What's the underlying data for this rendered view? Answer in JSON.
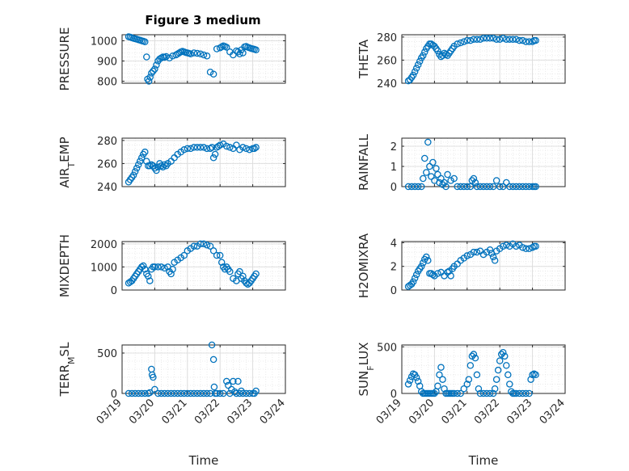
{
  "title": "Figure 3 medium",
  "chart_data": [
    {
      "type": "scatter",
      "ylabel": "PRESSURE",
      "ylabel_sub": "",
      "ylim": [
        790,
        1030
      ],
      "yticks": [
        800,
        900,
        1000
      ],
      "xlim": [
        0,
        5
      ],
      "grid": true,
      "color": "#0072BD",
      "x": [
        0.2,
        0.25,
        0.3,
        0.35,
        0.4,
        0.45,
        0.5,
        0.55,
        0.6,
        0.65,
        0.7,
        0.75,
        0.78,
        0.82,
        0.86,
        0.9,
        0.95,
        1.0,
        1.05,
        1.1,
        1.15,
        1.2,
        1.25,
        1.3,
        1.35,
        1.45,
        1.55,
        1.65,
        1.7,
        1.75,
        1.8,
        1.85,
        1.9,
        1.95,
        2.0,
        2.05,
        2.1,
        2.2,
        2.3,
        2.4,
        2.5,
        2.6,
        2.7,
        2.8,
        2.9,
        3.0,
        3.05,
        3.1,
        3.15,
        3.2,
        3.3,
        3.4,
        3.5,
        3.55,
        3.6,
        3.65,
        3.7,
        3.75,
        3.8,
        3.85,
        3.9,
        3.95,
        4.0,
        4.05,
        4.1
      ],
      "y": [
        1020,
        1018,
        1015,
        1012,
        1010,
        1008,
        1005,
        1003,
        1000,
        998,
        995,
        920,
        810,
        800,
        820,
        840,
        850,
        860,
        880,
        900,
        910,
        915,
        920,
        918,
        922,
        915,
        925,
        930,
        935,
        940,
        945,
        948,
        945,
        942,
        940,
        938,
        935,
        940,
        938,
        935,
        930,
        925,
        845,
        835,
        960,
        965,
        970,
        975,
        972,
        968,
        945,
        930,
        950,
        945,
        935,
        955,
        940,
        970,
        972,
        968,
        965,
        962,
        960,
        958,
        955
      ]
    },
    {
      "type": "scatter",
      "ylabel": "THETA",
      "ylabel_sub": "",
      "ylim": [
        240,
        282
      ],
      "yticks": [
        240,
        260,
        280
      ],
      "xlim": [
        0,
        5
      ],
      "grid": true,
      "color": "#0072BD",
      "x": [
        0.2,
        0.25,
        0.3,
        0.35,
        0.4,
        0.45,
        0.5,
        0.55,
        0.6,
        0.65,
        0.7,
        0.75,
        0.8,
        0.85,
        0.9,
        0.95,
        1.0,
        1.05,
        1.1,
        1.15,
        1.2,
        1.25,
        1.3,
        1.35,
        1.4,
        1.45,
        1.5,
        1.55,
        1.6,
        1.7,
        1.8,
        1.9,
        2.0,
        2.1,
        2.2,
        2.3,
        2.4,
        2.5,
        2.6,
        2.7,
        2.8,
        2.9,
        3.0,
        3.1,
        3.2,
        3.3,
        3.4,
        3.5,
        3.6,
        3.7,
        3.8,
        3.9,
        4.0,
        4.05,
        4.1
      ],
      "y": [
        242,
        243,
        245,
        247,
        250,
        253,
        256,
        259,
        262,
        264,
        267,
        270,
        272,
        274,
        274,
        273,
        272,
        270,
        268,
        265,
        263,
        264,
        266,
        265,
        264,
        266,
        268,
        270,
        272,
        274,
        275,
        276,
        277,
        277,
        278,
        278,
        278,
        279,
        279,
        279,
        279,
        278,
        278,
        279,
        278,
        278,
        278,
        278,
        277,
        277,
        276,
        276,
        276,
        277,
        277
      ]
    },
    {
      "type": "scatter",
      "ylabel": "AIR",
      "ylabel_sub": "T",
      "ylabel_rest": "EMP",
      "ylim": [
        240,
        282
      ],
      "yticks": [
        240,
        260,
        280
      ],
      "xlim": [
        0,
        5
      ],
      "grid": true,
      "color": "#0072BD",
      "x": [
        0.2,
        0.25,
        0.3,
        0.35,
        0.4,
        0.45,
        0.5,
        0.55,
        0.6,
        0.65,
        0.7,
        0.75,
        0.8,
        0.85,
        0.9,
        0.95,
        1.0,
        1.05,
        1.1,
        1.15,
        1.2,
        1.25,
        1.3,
        1.35,
        1.4,
        1.5,
        1.6,
        1.7,
        1.8,
        1.9,
        2.0,
        2.1,
        2.2,
        2.3,
        2.4,
        2.5,
        2.6,
        2.7,
        2.75,
        2.8,
        2.85,
        2.9,
        2.95,
        3.0,
        3.1,
        3.2,
        3.3,
        3.4,
        3.5,
        3.6,
        3.7,
        3.8,
        3.9,
        4.0,
        4.05,
        4.1
      ],
      "y": [
        244,
        246,
        248,
        250,
        253,
        256,
        259,
        262,
        265,
        268,
        270,
        262,
        258,
        258,
        259,
        258,
        256,
        254,
        257,
        260,
        258,
        257,
        259,
        258,
        260,
        262,
        265,
        268,
        270,
        272,
        273,
        273,
        274,
        274,
        274,
        274,
        273,
        273,
        274,
        265,
        268,
        274,
        275,
        276,
        277,
        275,
        274,
        273,
        276,
        272,
        274,
        273,
        272,
        273,
        273,
        274
      ]
    },
    {
      "type": "scatter",
      "ylabel": "RAINFALL",
      "ylabel_sub": "",
      "ylim": [
        0,
        2.4
      ],
      "yticks": [
        0,
        1,
        2
      ],
      "xlim": [
        0,
        5
      ],
      "grid": true,
      "color": "#0072BD",
      "x": [
        0.2,
        0.3,
        0.4,
        0.5,
        0.6,
        0.65,
        0.7,
        0.75,
        0.8,
        0.85,
        0.9,
        0.95,
        1.0,
        1.05,
        1.1,
        1.15,
        1.2,
        1.25,
        1.3,
        1.35,
        1.4,
        1.5,
        1.6,
        1.7,
        1.8,
        1.9,
        2.0,
        2.1,
        2.15,
        2.2,
        2.25,
        2.3,
        2.4,
        2.5,
        2.6,
        2.7,
        2.8,
        2.9,
        3.0,
        3.1,
        3.2,
        3.3,
        3.4,
        3.5,
        3.6,
        3.7,
        3.8,
        3.9,
        4.0,
        4.05,
        4.1
      ],
      "y": [
        0,
        0,
        0,
        0,
        0,
        0.4,
        1.4,
        0.7,
        2.2,
        1.0,
        0.5,
        1.2,
        0.3,
        0.9,
        0.6,
        0.2,
        0.4,
        0.1,
        0.2,
        0,
        0.6,
        0.3,
        0.4,
        0,
        0,
        0,
        0,
        0,
        0.3,
        0.4,
        0.2,
        0,
        0,
        0,
        0,
        0,
        0,
        0.3,
        0,
        0,
        0.2,
        0,
        0,
        0,
        0,
        0,
        0,
        0,
        0,
        0,
        0
      ]
    },
    {
      "type": "scatter",
      "ylabel": "MIXDEPTH",
      "ylabel_sub": "",
      "ylim": [
        0,
        2100
      ],
      "yticks": [
        0,
        1000,
        2000
      ],
      "xlim": [
        0,
        5
      ],
      "grid": true,
      "color": "#0072BD",
      "x": [
        0.2,
        0.25,
        0.3,
        0.35,
        0.4,
        0.45,
        0.5,
        0.55,
        0.6,
        0.65,
        0.7,
        0.75,
        0.8,
        0.85,
        0.9,
        0.95,
        1.0,
        1.1,
        1.2,
        1.3,
        1.4,
        1.45,
        1.5,
        1.55,
        1.6,
        1.7,
        1.8,
        1.9,
        2.0,
        2.1,
        2.2,
        2.3,
        2.4,
        2.5,
        2.6,
        2.7,
        2.8,
        2.9,
        3.0,
        3.05,
        3.1,
        3.15,
        3.2,
        3.25,
        3.3,
        3.4,
        3.5,
        3.55,
        3.6,
        3.65,
        3.7,
        3.75,
        3.8,
        3.85,
        3.9,
        3.95,
        4.0,
        4.05,
        4.1
      ],
      "y": [
        300,
        350,
        400,
        500,
        600,
        700,
        800,
        900,
        1000,
        1050,
        900,
        700,
        600,
        400,
        900,
        1000,
        1000,
        1000,
        1000,
        950,
        1000,
        800,
        700,
        900,
        1200,
        1300,
        1400,
        1500,
        1700,
        1800,
        1900,
        1900,
        2000,
        2000,
        1950,
        1900,
        1700,
        1500,
        1500,
        1200,
        1000,
        900,
        1000,
        900,
        800,
        500,
        400,
        700,
        800,
        500,
        600,
        400,
        300,
        250,
        300,
        400,
        500,
        600,
        700
      ]
    },
    {
      "type": "scatter",
      "ylabel": "H2OMIXRA",
      "ylabel_sub": "",
      "ylim": [
        0,
        4.1
      ],
      "yticks": [
        0,
        2,
        4
      ],
      "xlim": [
        0,
        5
      ],
      "grid": true,
      "color": "#0072BD",
      "x": [
        0.2,
        0.25,
        0.3,
        0.35,
        0.4,
        0.45,
        0.5,
        0.55,
        0.6,
        0.65,
        0.7,
        0.75,
        0.8,
        0.85,
        0.9,
        0.95,
        1.0,
        1.1,
        1.2,
        1.3,
        1.4,
        1.45,
        1.5,
        1.55,
        1.6,
        1.7,
        1.8,
        1.9,
        2.0,
        2.1,
        2.2,
        2.3,
        2.4,
        2.5,
        2.6,
        2.7,
        2.75,
        2.8,
        2.85,
        2.9,
        3.0,
        3.1,
        3.2,
        3.3,
        3.4,
        3.5,
        3.6,
        3.7,
        3.8,
        3.9,
        4.0,
        4.05,
        4.1
      ],
      "y": [
        0.3,
        0.4,
        0.5,
        0.7,
        1.0,
        1.3,
        1.6,
        1.8,
        2.0,
        2.3,
        2.6,
        2.8,
        2.5,
        1.4,
        1.4,
        1.3,
        1.2,
        1.4,
        1.5,
        1.2,
        1.5,
        1.6,
        1.2,
        1.8,
        2.0,
        2.2,
        2.5,
        2.7,
        2.9,
        3.0,
        3.2,
        3.2,
        3.3,
        3.0,
        3.2,
        3.4,
        3.1,
        2.8,
        2.5,
        3.3,
        3.5,
        3.7,
        3.8,
        3.7,
        3.9,
        3.7,
        3.8,
        3.6,
        3.5,
        3.5,
        3.6,
        3.7,
        3.7
      ]
    },
    {
      "type": "scatter",
      "ylabel": "TERR",
      "ylabel_sub": "M",
      "ylabel_rest": "SL",
      "ylim": [
        0,
        600
      ],
      "yticks": [
        0,
        500
      ],
      "xlim": [
        0,
        5
      ],
      "grid": true,
      "color": "#0072BD",
      "x": [
        0.2,
        0.3,
        0.4,
        0.5,
        0.6,
        0.7,
        0.8,
        0.85,
        0.9,
        0.92,
        0.95,
        1.0,
        1.1,
        1.2,
        1.3,
        1.4,
        1.5,
        1.6,
        1.7,
        1.8,
        1.9,
        2.0,
        2.1,
        2.2,
        2.3,
        2.4,
        2.5,
        2.6,
        2.7,
        2.75,
        2.8,
        2.82,
        2.85,
        2.9,
        3.0,
        3.1,
        3.2,
        3.25,
        3.3,
        3.35,
        3.4,
        3.45,
        3.5,
        3.55,
        3.6,
        3.65,
        3.7,
        3.8,
        3.9,
        4.0,
        4.05,
        4.1
      ],
      "y": [
        0,
        0,
        0,
        0,
        0,
        0,
        0,
        10,
        300,
        230,
        200,
        50,
        0,
        0,
        0,
        0,
        0,
        0,
        0,
        0,
        0,
        0,
        0,
        0,
        0,
        0,
        0,
        0,
        0,
        600,
        420,
        80,
        0,
        0,
        0,
        0,
        150,
        100,
        0,
        50,
        150,
        20,
        0,
        150,
        0,
        30,
        0,
        0,
        0,
        0,
        0,
        30
      ]
    },
    {
      "type": "scatter",
      "ylabel": "SUN",
      "ylabel_sub": "F",
      "ylabel_rest": "LUX",
      "ylim": [
        0,
        520
      ],
      "yticks": [
        0,
        500
      ],
      "xlim": [
        0,
        5
      ],
      "grid": true,
      "color": "#0072BD",
      "x": [
        0.2,
        0.25,
        0.3,
        0.35,
        0.4,
        0.45,
        0.5,
        0.55,
        0.6,
        0.65,
        0.7,
        0.75,
        0.8,
        0.85,
        0.9,
        0.95,
        1.0,
        1.05,
        1.1,
        1.15,
        1.2,
        1.25,
        1.3,
        1.35,
        1.4,
        1.45,
        1.5,
        1.55,
        1.6,
        1.7,
        1.8,
        1.9,
        2.0,
        2.05,
        2.1,
        2.15,
        2.2,
        2.25,
        2.3,
        2.35,
        2.4,
        2.5,
        2.6,
        2.7,
        2.8,
        2.85,
        2.9,
        2.95,
        3.0,
        3.05,
        3.1,
        3.15,
        3.2,
        3.25,
        3.3,
        3.35,
        3.4,
        3.45,
        3.5,
        3.6,
        3.7,
        3.8,
        3.9,
        3.95,
        4.0,
        4.05,
        4.1
      ],
      "y": [
        100,
        140,
        180,
        210,
        200,
        170,
        130,
        80,
        20,
        0,
        0,
        0,
        0,
        0,
        0,
        0,
        0,
        20,
        80,
        200,
        280,
        150,
        50,
        0,
        0,
        0,
        0,
        0,
        0,
        0,
        0,
        50,
        100,
        150,
        300,
        400,
        420,
        380,
        200,
        50,
        0,
        0,
        0,
        0,
        0,
        50,
        150,
        250,
        350,
        420,
        440,
        400,
        300,
        200,
        100,
        20,
        0,
        0,
        0,
        0,
        0,
        0,
        0,
        150,
        200,
        210,
        200
      ]
    }
  ],
  "x_tick_labels": [
    "03/19",
    "03/20",
    "03/21",
    "03/22",
    "03/23",
    "03/24"
  ],
  "x_label": "Time",
  "colors": {
    "marker": "#0072BD",
    "axis": "#262626",
    "grid": "#d9d9d9"
  }
}
